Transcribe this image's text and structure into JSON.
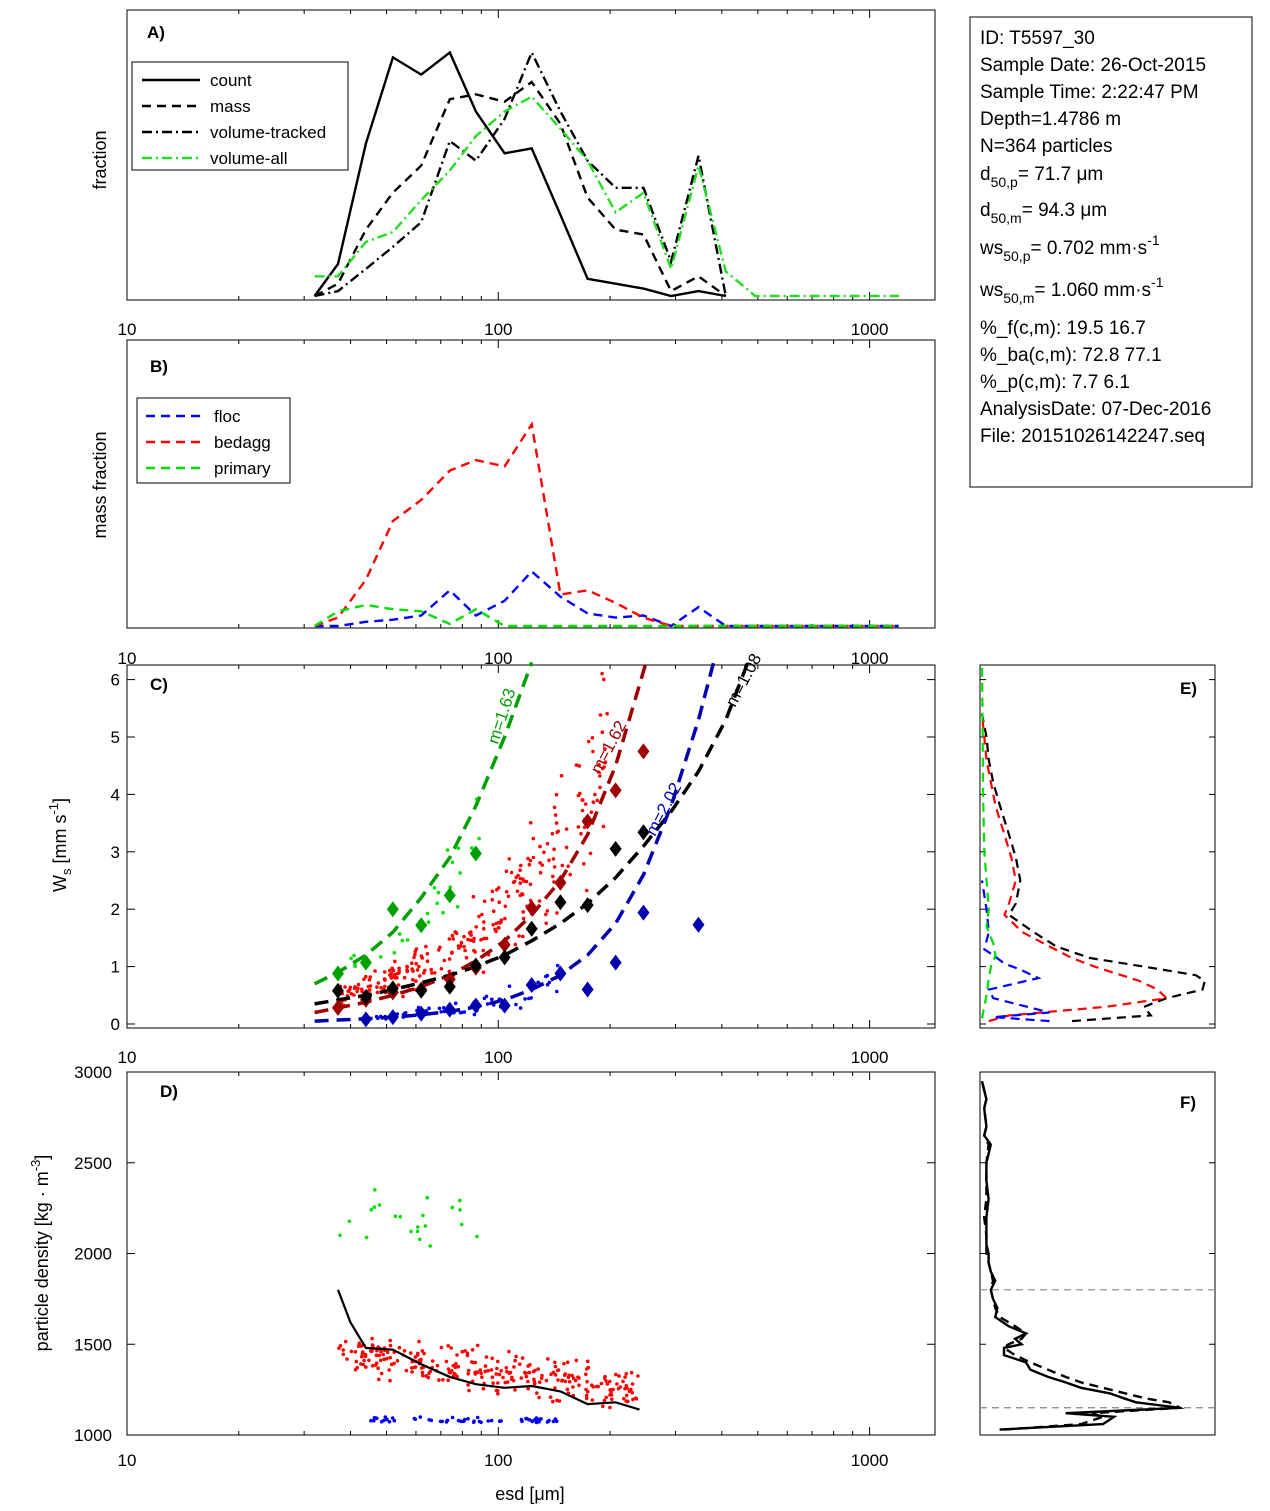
{
  "info_box": {
    "lines": [
      {
        "text": "ID: T5597_30"
      },
      {
        "text": "Sample Date: 26-Oct-2015"
      },
      {
        "text": "Sample Time:  2:22:47 PM"
      },
      {
        "text": "Depth=1.4786 m"
      },
      {
        "text": "N=364 particles"
      },
      {
        "main": "d",
        "sub": "50,p",
        "rest": "=  71.7 μm"
      },
      {
        "main": "d",
        "sub": "50,m",
        "rest": "=  94.3 μm"
      },
      {
        "main": "ws",
        "sub": "50,p",
        "rest": "= 0.702 mm·s",
        "sup": "-1"
      },
      {
        "main": "ws",
        "sub": "50,m",
        "rest": "= 1.060 mm·s",
        "sup": "-1"
      },
      {
        "text": "%_f(c,m): 19.5 16.7"
      },
      {
        "text": "%_ba(c,m): 72.8 77.1"
      },
      {
        "text": "%_p(c,m): 7.7 6.1"
      },
      {
        "text": "AnalysisDate: 07-Dec-2016"
      },
      {
        "text": "File: 20151026142247.seq"
      }
    ]
  },
  "colors": {
    "floc": "#0000ff",
    "bedagg": "#ff0000",
    "primary": "#00e000",
    "floc_dark": "#0000b0",
    "bedagg_dark": "#a00000",
    "primary_dark": "#00a000",
    "volume_all": "#22dd22"
  },
  "chart_data": [
    {
      "id": "A",
      "panel_label": "A)",
      "type": "line",
      "x_scale": "log",
      "xlim": [
        10,
        1500
      ],
      "x_ticks": [
        "10",
        "100",
        "1000"
      ],
      "ylabel": "fraction",
      "legend_position": "top-left",
      "series": [
        {
          "name": "count",
          "style": "solid",
          "color": "#000000",
          "x": [
            32,
            37,
            44,
            52,
            62,
            74,
            87,
            104,
            123,
            147,
            174,
            207,
            246,
            292,
            346,
            410
          ],
          "y": [
            0,
            0.13,
            0.62,
            0.97,
            0.9,
            0.99,
            0.75,
            0.58,
            0.6,
            0.33,
            0.07,
            0.05,
            0.03,
            0,
            0.02,
            0
          ]
        },
        {
          "name": "mass",
          "style": "dash",
          "color": "#000000",
          "x": [
            32,
            37,
            44,
            52,
            62,
            74,
            87,
            104,
            123,
            147,
            174,
            207,
            246,
            292,
            346,
            410
          ],
          "y": [
            0,
            0.05,
            0.27,
            0.42,
            0.53,
            0.8,
            0.82,
            0.79,
            0.87,
            0.7,
            0.4,
            0.27,
            0.25,
            0.02,
            0.08,
            0
          ]
        },
        {
          "name": "volume-tracked",
          "style": "dashdot",
          "color": "#000000",
          "x": [
            32,
            37,
            44,
            52,
            62,
            74,
            87,
            104,
            123,
            147,
            174,
            207,
            246,
            292,
            346,
            410
          ],
          "y": [
            0,
            0.02,
            0.11,
            0.2,
            0.3,
            0.63,
            0.55,
            0.72,
            0.99,
            0.75,
            0.55,
            0.44,
            0.44,
            0.14,
            0.57,
            0
          ]
        },
        {
          "name": "volume-all",
          "style": "dashdot",
          "color": "#22dd22",
          "x": [
            32,
            37,
            44,
            52,
            62,
            74,
            87,
            104,
            123,
            147,
            174,
            207,
            246,
            292,
            346,
            410,
            492,
            1200
          ],
          "y": [
            0.08,
            0.08,
            0.22,
            0.26,
            0.39,
            0.51,
            0.65,
            0.75,
            0.81,
            0.68,
            0.55,
            0.34,
            0.42,
            0.11,
            0.53,
            0.1,
            0,
            0
          ]
        }
      ]
    },
    {
      "id": "B",
      "panel_label": "B)",
      "type": "line",
      "x_scale": "log",
      "xlim": [
        10,
        1500
      ],
      "x_ticks": [
        "10",
        "100",
        "1000"
      ],
      "ylabel": "mass fraction",
      "legend_position": "top-left",
      "series": [
        {
          "name": "floc",
          "style": "dash",
          "color": "#0000ff",
          "x": [
            32,
            37,
            44,
            52,
            62,
            74,
            87,
            104,
            123,
            147,
            174,
            207,
            246,
            292,
            346,
            410,
            500,
            1200
          ],
          "y": [
            0,
            0,
            0.02,
            0.03,
            0.05,
            0.17,
            0.05,
            0.12,
            0.26,
            0.14,
            0.06,
            0.04,
            0.05,
            0,
            0.09,
            0,
            0,
            0
          ]
        },
        {
          "name": "bedagg",
          "style": "dash",
          "color": "#ff0000",
          "x": [
            32,
            37,
            44,
            52,
            62,
            74,
            87,
            104,
            123,
            147,
            174,
            207,
            246,
            292,
            346,
            410,
            500,
            1200
          ],
          "y": [
            0,
            0.04,
            0.22,
            0.5,
            0.6,
            0.74,
            0.79,
            0.76,
            0.96,
            0.15,
            0.17,
            0.11,
            0.04,
            0,
            0,
            0,
            0,
            0
          ]
        },
        {
          "name": "primary",
          "style": "dash",
          "color": "#00e000",
          "x": [
            32,
            37,
            44,
            52,
            62,
            74,
            87,
            104,
            123,
            147,
            174,
            207,
            246,
            292,
            346,
            410,
            500,
            1200
          ],
          "y": [
            0,
            0.07,
            0.1,
            0.08,
            0.07,
            0.01,
            0.08,
            0,
            0,
            0,
            0,
            0,
            0,
            0,
            0,
            0,
            0,
            0
          ]
        }
      ]
    },
    {
      "id": "C",
      "panel_label": "C)",
      "type": "scatter",
      "x_scale": "log",
      "xlim": [
        10,
        1500
      ],
      "ylim": [
        0,
        6.3
      ],
      "x_ticks": [
        "10",
        "100",
        "1000"
      ],
      "y_ticks": [
        "0",
        "1",
        "2",
        "3",
        "4",
        "5",
        "6"
      ],
      "ylabel": "W_s [mm s^-1]",
      "fits": [
        {
          "label": "m=1.63",
          "color": "#00a000",
          "x": [
            32,
            37,
            44,
            52,
            62,
            74,
            87,
            104,
            123
          ],
          "y": [
            0.7,
            0.9,
            1.2,
            1.6,
            2.2,
            2.9,
            3.8,
            5,
            6.3
          ]
        },
        {
          "label": "m=1.62",
          "color": "#a00000",
          "x": [
            32,
            37,
            44,
            52,
            62,
            74,
            87,
            104,
            123,
            147,
            174,
            207,
            250
          ],
          "y": [
            0.2,
            0.28,
            0.38,
            0.5,
            0.65,
            0.85,
            1.1,
            1.45,
            1.9,
            2.5,
            3.3,
            4.5,
            6.3
          ]
        },
        {
          "label": "m=1.08",
          "color": "#000000",
          "x": [
            32,
            37,
            44,
            52,
            62,
            74,
            87,
            104,
            123,
            147,
            174,
            207,
            246,
            292,
            346,
            410,
            470
          ],
          "y": [
            0.35,
            0.42,
            0.5,
            0.6,
            0.72,
            0.85,
            1.0,
            1.2,
            1.45,
            1.75,
            2.1,
            2.55,
            3.1,
            3.7,
            4.4,
            5.3,
            6.3
          ]
        },
        {
          "label": "m=2.02",
          "color": "#0000b0",
          "x": [
            32,
            37,
            44,
            52,
            62,
            74,
            87,
            104,
            123,
            147,
            174,
            207,
            246,
            292,
            346,
            380
          ],
          "y": [
            0.05,
            0.07,
            0.09,
            0.12,
            0.16,
            0.22,
            0.3,
            0.42,
            0.6,
            0.85,
            1.2,
            1.75,
            2.6,
            3.8,
            5.3,
            6.3
          ]
        }
      ],
      "medians": [
        {
          "color": "#00a000",
          "x": [
            37,
            44,
            52,
            62,
            74,
            87
          ],
          "y": [
            0.88,
            1.07,
            2.0,
            1.72,
            2.24,
            2.97
          ]
        },
        {
          "color": "#a00000",
          "x": [
            37,
            44,
            52,
            62,
            74,
            87,
            104,
            123,
            147,
            174,
            207,
            246
          ],
          "y": [
            0.28,
            0.42,
            0.55,
            0.6,
            0.78,
            0.98,
            1.38,
            2.02,
            2.46,
            3.53,
            4.07,
            4.75
          ]
        },
        {
          "color": "#000000",
          "x": [
            37,
            44,
            52,
            62,
            74,
            87,
            104,
            123,
            147,
            174,
            207,
            246
          ],
          "y": [
            0.58,
            0.47,
            0.62,
            0.58,
            0.65,
            1.02,
            1.16,
            1.66,
            2.12,
            2.07,
            3.05,
            3.34
          ]
        },
        {
          "color": "#0000b0",
          "x": [
            44,
            52,
            62,
            74,
            87,
            104,
            123,
            147,
            174,
            207,
            246,
            346
          ],
          "y": [
            0.08,
            0.12,
            0.18,
            0.25,
            0.32,
            0.32,
            0.68,
            0.88,
            0.6,
            1.07,
            1.94,
            1.73
          ]
        }
      ]
    },
    {
      "id": "D",
      "panel_label": "D)",
      "type": "scatter",
      "x_scale": "log",
      "xlim": [
        10,
        1500
      ],
      "ylim": [
        1000,
        3000
      ],
      "x_ticks": [
        "10",
        "100",
        "1000"
      ],
      "y_ticks": [
        "1000",
        "1500",
        "2000",
        "2500",
        "3000"
      ],
      "xlabel": "esd [μm]",
      "ylabel": "particle density [kg · m^-3]",
      "median_line": {
        "color": "#000000",
        "x": [
          37,
          40,
          44,
          52,
          62,
          74,
          87,
          104,
          123,
          147,
          174,
          207,
          240
        ],
        "y": [
          1800,
          1620,
          1480,
          1470,
          1390,
          1320,
          1280,
          1260,
          1270,
          1240,
          1170,
          1180,
          1140
        ]
      }
    },
    {
      "id": "E",
      "panel_label": "E)",
      "type": "line",
      "orientation": "horizontal-histogram",
      "ylim": [
        0,
        6.3
      ],
      "series": [
        {
          "color": "#000000",
          "y": [
            0.05,
            0.15,
            0.3,
            0.45,
            0.6,
            0.75,
            0.85,
            1,
            1.15,
            1.35,
            1.6,
            1.9,
            2.1,
            2.5,
            2.9,
            3.3,
            3.8,
            4.2,
            4.6,
            5,
            5.4
          ],
          "x": [
            0.4,
            0.75,
            0.72,
            0.82,
            0.98,
            0.99,
            0.95,
            0.72,
            0.48,
            0.33,
            0.23,
            0.12,
            0.15,
            0.17,
            0.15,
            0.12,
            0.08,
            0.05,
            0.03,
            0.02,
            0
          ]
        },
        {
          "color": "#ff0000",
          "y": [
            0.05,
            0.15,
            0.3,
            0.45,
            0.6,
            0.75,
            0.85,
            1,
            1.15,
            1.35,
            1.6,
            1.9,
            2.1,
            2.5,
            2.9,
            3.3,
            3.8,
            4.2,
            4.6,
            5,
            5.4
          ],
          "x": [
            0.03,
            0.12,
            0.55,
            0.82,
            0.78,
            0.7,
            0.62,
            0.5,
            0.4,
            0.3,
            0.18,
            0.1,
            0.12,
            0.15,
            0.13,
            0.1,
            0.06,
            0.04,
            0.02,
            0.01,
            0
          ]
        },
        {
          "color": "#0000ff",
          "y": [
            0.05,
            0.12,
            0.2,
            0.35,
            0.45,
            0.6,
            0.8,
            0.95,
            1.05,
            1.2,
            1.3,
            1.6,
            2.0,
            2.5
          ],
          "x": [
            0.3,
            0.05,
            0.3,
            0.15,
            0.05,
            0.03,
            0.25,
            0.17,
            0.1,
            0.05,
            0.01,
            0.03,
            0.02,
            0
          ]
        },
        {
          "color": "#00dd00",
          "y": [
            0.1,
            0.5,
            0.8,
            1.0,
            1.2,
            1.4,
            1.7,
            2,
            3,
            4,
            5,
            6.3
          ],
          "x": [
            0,
            0.02,
            0.03,
            0.04,
            0.06,
            0.05,
            0.02,
            0.03,
            0.01,
            0.005,
            0.003,
            0
          ]
        }
      ]
    },
    {
      "id": "F",
      "panel_label": "F)",
      "type": "line",
      "orientation": "horizontal-histogram",
      "ylim": [
        1000,
        3000
      ],
      "reference_lines_y": [
        1150,
        1800
      ],
      "series": [
        {
          "style": "solid",
          "color": "#000000",
          "y": [
            1030,
            1060,
            1100,
            1120,
            1150,
            1180,
            1200,
            1230,
            1260,
            1290,
            1320,
            1360,
            1400,
            1440,
            1480,
            1500,
            1530,
            1560,
            1600,
            1650,
            1700,
            1750,
            1800,
            1850,
            1900,
            1950,
            2000,
            2050,
            2100,
            2200,
            2300,
            2400,
            2500,
            2600,
            2650,
            2700,
            2800,
            2850,
            2900,
            2950
          ],
          "x": [
            0.08,
            0.55,
            0.6,
            0.38,
            0.9,
            0.7,
            0.65,
            0.58,
            0.45,
            0.38,
            0.3,
            0.22,
            0.2,
            0.1,
            0.1,
            0.18,
            0.15,
            0.2,
            0.12,
            0.06,
            0.07,
            0.05,
            0.04,
            0.06,
            0.04,
            0.03,
            0.03,
            0.02,
            0.02,
            0.02,
            0.03,
            0.02,
            0.02,
            0.04,
            0.01,
            0.02,
            0.01,
            0.02,
            0.01,
            0
          ]
        },
        {
          "style": "dash",
          "color": "#000000",
          "y": [
            1030,
            1060,
            1100,
            1120,
            1150,
            1180,
            1200,
            1230,
            1260,
            1290,
            1320,
            1360,
            1400,
            1440,
            1480,
            1500,
            1530,
            1560,
            1600,
            1650,
            1700,
            1750,
            1800,
            1850,
            1900,
            1950,
            2000,
            2050,
            2100,
            2200,
            2300,
            2400,
            2500,
            2600,
            2650,
            2700,
            2800,
            2850,
            2900,
            2950
          ],
          "x": [
            0.1,
            0.45,
            0.55,
            0.5,
            0.9,
            0.85,
            0.75,
            0.65,
            0.55,
            0.45,
            0.38,
            0.3,
            0.22,
            0.15,
            0.1,
            0.12,
            0.18,
            0.2,
            0.15,
            0.08,
            0.06,
            0.05,
            0.04,
            0.05,
            0.04,
            0.03,
            0.02,
            0.02,
            0.02,
            0.01,
            0.02,
            0.02,
            0.02,
            0.03,
            0.01,
            0.02,
            0.01,
            0.02,
            0.01,
            0
          ]
        }
      ]
    }
  ]
}
